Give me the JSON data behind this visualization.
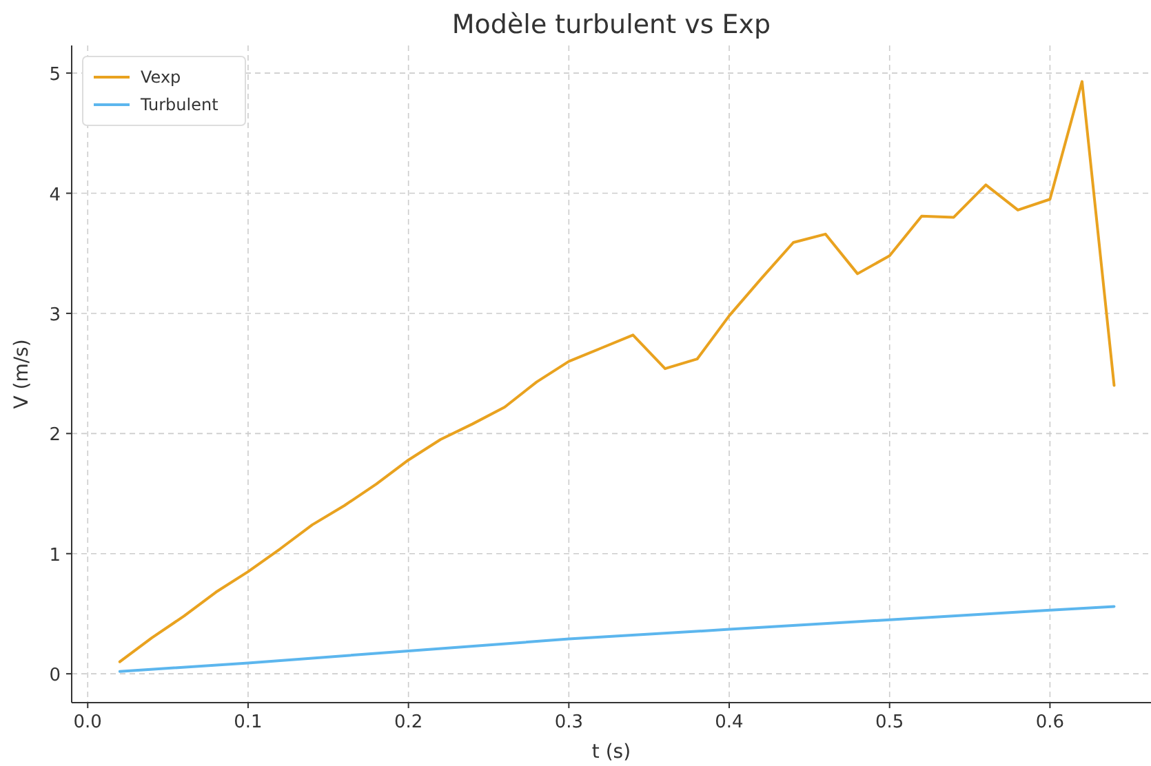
{
  "chart_data": {
    "type": "line",
    "title": "Modèle turbulent vs Exp",
    "xlabel": "t (s)",
    "ylabel": "V (m/s)",
    "xlim": [
      -0.01,
      0.663
    ],
    "ylim": [
      -0.24,
      5.23
    ],
    "xticks": [
      {
        "value": 0,
        "label": "0.0"
      },
      0.1,
      0.2,
      0.3,
      0.4,
      0.5,
      0.6
    ],
    "yticks": [
      0,
      1,
      2,
      3,
      4,
      5
    ],
    "grid": true,
    "legend": "top left",
    "line_style": "solid",
    "marker": "none",
    "series": [
      {
        "name": "Vexp",
        "color": "#e9a21f",
        "x": [
          0.02,
          0.04,
          0.06,
          0.08,
          0.1,
          0.12,
          0.14,
          0.16,
          0.18,
          0.2,
          0.22,
          0.24,
          0.26,
          0.28,
          0.3,
          0.32,
          0.34,
          0.36,
          0.38,
          0.4,
          0.42,
          0.44,
          0.46,
          0.48,
          0.5,
          0.52,
          0.54,
          0.56,
          0.58,
          0.6,
          0.62,
          0.64
        ],
        "values": [
          0.1,
          0.3,
          0.48,
          0.68,
          0.85,
          1.04,
          1.24,
          1.4,
          1.58,
          1.78,
          1.95,
          2.08,
          2.22,
          2.43,
          2.6,
          2.71,
          2.82,
          2.54,
          2.62,
          2.98,
          3.29,
          3.59,
          3.66,
          3.33,
          3.48,
          3.81,
          3.8,
          4.07,
          3.86,
          3.95,
          4.93,
          2.4
        ]
      },
      {
        "name": "Turbulent",
        "color": "#5cb6ee",
        "x": [
          0.02,
          0.1,
          0.2,
          0.3,
          0.4,
          0.5,
          0.6,
          0.64
        ],
        "values": [
          0.02,
          0.09,
          0.19,
          0.29,
          0.37,
          0.45,
          0.53,
          0.56
        ]
      }
    ]
  }
}
